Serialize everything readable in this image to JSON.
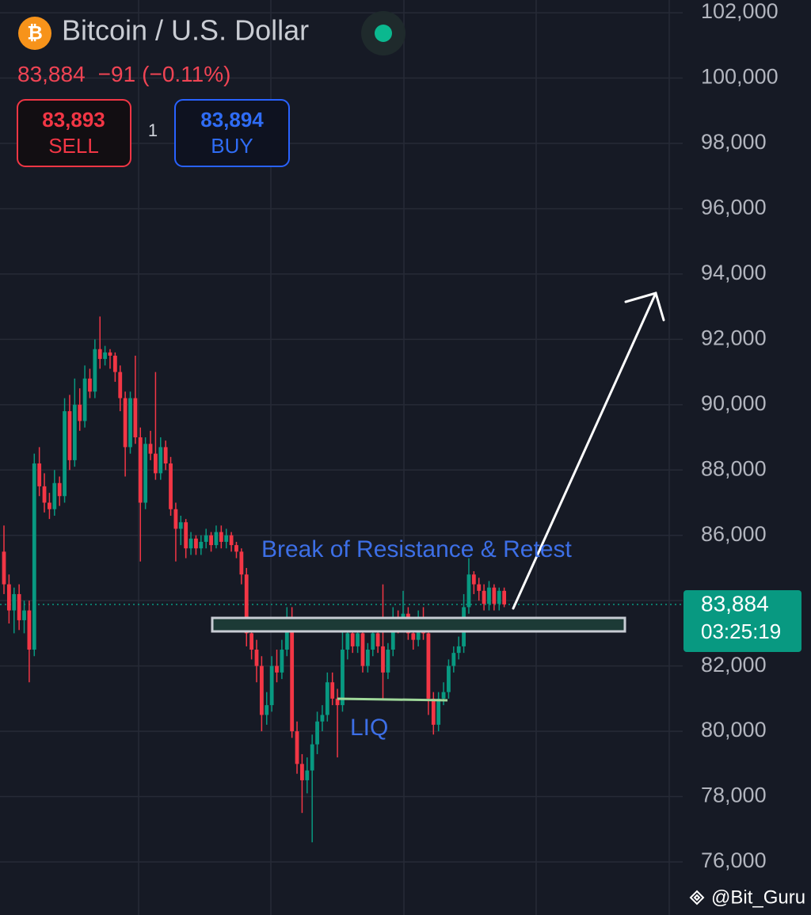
{
  "header": {
    "title": "Bitcoin / U.S. Dollar",
    "last": "83,884",
    "change": "−91",
    "change_pct": "(−0.11%)",
    "sell_price": "83,893",
    "sell_label": "SELL",
    "quantity": "1",
    "buy_price": "83,894",
    "buy_label": "BUY"
  },
  "chart_data": {
    "type": "candlestick",
    "annotations": [
      "Break of Resistance & Retest",
      "LIQ"
    ],
    "watermark": "@Bit_Guru",
    "countdown": "03:25:19",
    "current_price": {
      "value": 83884,
      "label": "83,884"
    },
    "up_color": "#089981",
    "down_color": "#f23645",
    "grid": true,
    "ylim": [
      74375,
      102390
    ],
    "yticks": [
      {
        "value": 76000,
        "label": "76,000"
      },
      {
        "value": 78000,
        "label": "78,000"
      },
      {
        "value": 80000,
        "label": "80,000"
      },
      {
        "value": 82000,
        "label": "82,000"
      },
      {
        "value": 84000,
        "label": "84,000"
      },
      {
        "value": 86000,
        "label": "86,000"
      },
      {
        "value": 88000,
        "label": "88,000"
      },
      {
        "value": 90000,
        "label": "90,000"
      },
      {
        "value": 92000,
        "label": "92,000"
      },
      {
        "value": 94000,
        "label": "94,000"
      },
      {
        "value": 96000,
        "label": "96,000"
      },
      {
        "value": 98000,
        "label": "98,000"
      },
      {
        "value": 100000,
        "label": "100,000"
      },
      {
        "value": 102000,
        "label": "102,000"
      }
    ],
    "ohlc": [
      [
        85500,
        86300,
        84200,
        84500
      ],
      [
        84500,
        84800,
        83300,
        83700
      ],
      [
        83700,
        84400,
        83000,
        84200
      ],
      [
        84200,
        84500,
        83100,
        83400
      ],
      [
        83400,
        84000,
        83000,
        83700
      ],
      [
        83700,
        84000,
        81500,
        82500
      ],
      [
        82500,
        88500,
        82300,
        88200
      ],
      [
        88200,
        88700,
        87200,
        87500
      ],
      [
        87500,
        87900,
        86700,
        87000
      ],
      [
        87000,
        87300,
        86500,
        86800
      ],
      [
        86800,
        88000,
        86600,
        87600
      ],
      [
        87600,
        87800,
        86900,
        87200
      ],
      [
        87200,
        90200,
        87000,
        89800
      ],
      [
        89800,
        90300,
        88000,
        88300
      ],
      [
        88300,
        90800,
        88100,
        90000
      ],
      [
        90000,
        90500,
        89200,
        89500
      ],
      [
        89500,
        91200,
        89300,
        90800
      ],
      [
        90800,
        91100,
        90200,
        90400
      ],
      [
        90400,
        92000,
        90200,
        91700
      ],
      [
        91700,
        92700,
        91100,
        91400
      ],
      [
        91400,
        91800,
        91200,
        91600
      ],
      [
        91600,
        91700,
        91100,
        91500
      ],
      [
        91500,
        91600,
        90700,
        91000
      ],
      [
        91000,
        91200,
        89800,
        90200
      ],
      [
        90200,
        90400,
        87800,
        88700
      ],
      [
        88700,
        90400,
        88500,
        90200
      ],
      [
        90200,
        91500,
        88800,
        89000
      ],
      [
        89000,
        89300,
        85200,
        87000
      ],
      [
        87000,
        89000,
        86800,
        88800
      ],
      [
        88800,
        89200,
        88300,
        88500
      ],
      [
        88500,
        91000,
        87700,
        87900
      ],
      [
        87900,
        89000,
        87700,
        88700
      ],
      [
        88700,
        88900,
        88000,
        88200
      ],
      [
        88200,
        88400,
        86600,
        86800
      ],
      [
        86800,
        87000,
        85200,
        86200
      ],
      [
        86200,
        86600,
        85700,
        86400
      ],
      [
        86400,
        86500,
        85300,
        85600
      ],
      [
        85600,
        86100,
        85400,
        85900
      ],
      [
        85900,
        86000,
        85400,
        85600
      ],
      [
        85600,
        86000,
        85400,
        85800
      ],
      [
        85800,
        86200,
        85600,
        86000
      ],
      [
        86000,
        86100,
        85500,
        85700
      ],
      [
        85700,
        86300,
        85600,
        86100
      ],
      [
        86100,
        86300,
        85600,
        85800
      ],
      [
        85800,
        86200,
        85600,
        86000
      ],
      [
        86000,
        86100,
        85500,
        85700
      ],
      [
        85700,
        85800,
        85300,
        85500
      ],
      [
        85500,
        85600,
        84500,
        84800
      ],
      [
        84800,
        85000,
        82600,
        83000
      ],
      [
        83000,
        83500,
        82200,
        82500
      ],
      [
        82500,
        82800,
        81500,
        82000
      ],
      [
        82000,
        82300,
        80000,
        80500
      ],
      [
        80500,
        81200,
        80200,
        80800
      ],
      [
        80800,
        82300,
        80600,
        82000
      ],
      [
        82000,
        82500,
        81500,
        81800
      ],
      [
        81800,
        82800,
        81600,
        82500
      ],
      [
        82500,
        83800,
        82300,
        83400
      ],
      [
        83400,
        83800,
        79800,
        80000
      ],
      [
        80000,
        80300,
        78700,
        79000
      ],
      [
        79000,
        79300,
        77500,
        78500
      ],
      [
        78500,
        79200,
        78100,
        78800
      ],
      [
        78800,
        79900,
        76600,
        79600
      ],
      [
        79600,
        80600,
        79300,
        80300
      ],
      [
        80300,
        80800,
        80000,
        80500
      ],
      [
        80500,
        81800,
        80300,
        81500
      ],
      [
        81500,
        81800,
        80800,
        81000
      ],
      [
        81000,
        81300,
        79200,
        80800
      ],
      [
        80800,
        83200,
        80600,
        82500
      ],
      [
        82500,
        83300,
        82200,
        83000
      ],
      [
        83000,
        83200,
        82400,
        82600
      ],
      [
        82600,
        83300,
        82400,
        83000
      ],
      [
        83000,
        83100,
        81800,
        82000
      ],
      [
        82000,
        82700,
        81800,
        82500
      ],
      [
        82500,
        83200,
        82300,
        83000
      ],
      [
        83000,
        83100,
        82400,
        82600
      ],
      [
        82600,
        84500,
        81000,
        81800
      ],
      [
        81800,
        82700,
        81600,
        82500
      ],
      [
        82500,
        83800,
        82300,
        83500
      ],
      [
        83500,
        83700,
        83000,
        83300
      ],
      [
        83300,
        84300,
        83100,
        83600
      ],
      [
        83600,
        83800,
        82800,
        83000
      ],
      [
        83000,
        83200,
        82500,
        82800
      ],
      [
        82800,
        83700,
        82600,
        83500
      ],
      [
        83500,
        83800,
        82800,
        83000
      ],
      [
        83000,
        83200,
        80500,
        81000
      ],
      [
        81000,
        81200,
        79900,
        80200
      ],
      [
        80200,
        81200,
        80000,
        81000
      ],
      [
        81000,
        81500,
        80800,
        81200
      ],
      [
        81200,
        82200,
        81000,
        82000
      ],
      [
        82000,
        82600,
        81800,
        82400
      ],
      [
        82400,
        82900,
        82200,
        82600
      ],
      [
        82600,
        84200,
        82400,
        83800
      ],
      [
        83800,
        85300,
        83600,
        84800
      ],
      [
        84800,
        84900,
        84200,
        84500
      ],
      [
        84500,
        84700,
        84000,
        84300
      ],
      [
        84300,
        84500,
        83700,
        83900
      ],
      [
        83900,
        84600,
        83700,
        84400
      ],
      [
        84400,
        84500,
        83700,
        83900
      ],
      [
        83900,
        84400,
        83700,
        84300
      ],
      [
        84300,
        84400,
        83800,
        83884
      ]
    ]
  }
}
